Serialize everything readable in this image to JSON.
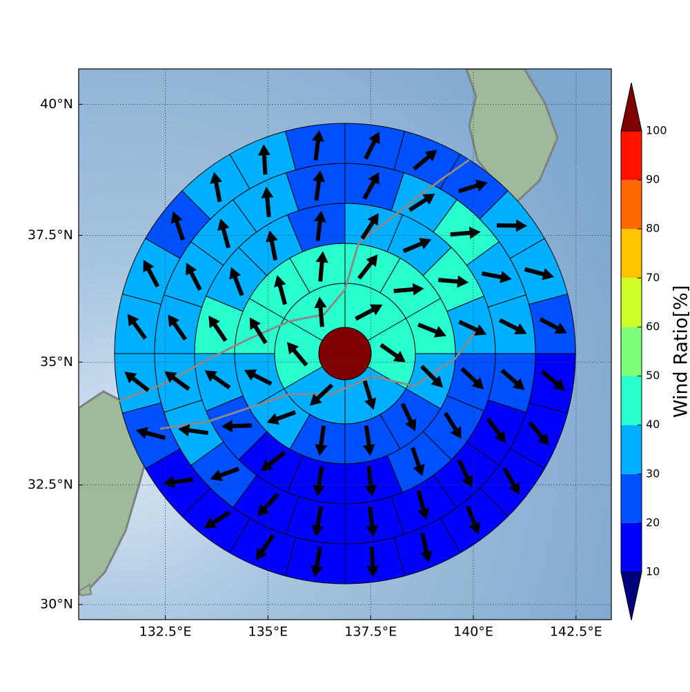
{
  "chart_data": {
    "type": "polar_sector_map",
    "xlim": [
      130.39,
      143.36
    ],
    "ylim": [
      29.68,
      40.66
    ],
    "xticks": [
      {
        "value": 132.5,
        "label": "132.5°E"
      },
      {
        "value": 135,
        "label": "135°E"
      },
      {
        "value": 137.5,
        "label": "137.5°E"
      },
      {
        "value": 140,
        "label": "140°E"
      },
      {
        "value": 142.5,
        "label": "142.5°E"
      }
    ],
    "yticks": [
      {
        "value": 30,
        "label": "30°N"
      },
      {
        "value": 32.5,
        "label": "32.5°N"
      },
      {
        "value": 35,
        "label": "35°N"
      },
      {
        "value": 37.5,
        "label": "37.5°N"
      },
      {
        "value": 40,
        "label": "40°N"
      }
    ],
    "grid": true,
    "colorbar": {
      "label": "Wind Ratio[%]",
      "ticks": [
        10,
        20,
        30,
        40,
        50,
        60,
        70,
        80,
        90,
        100
      ],
      "colors": [
        "#0000ff",
        "#0050ff",
        "#00b0ff",
        "#29ffce",
        "#7dff7a",
        "#ceff29",
        "#ffc400",
        "#ff6800",
        "#ff1300"
      ],
      "under_color": "#00007f",
      "over_color": "#7f0000"
    },
    "center_value": 105,
    "rings": [
      {
        "ratio": [
          45,
          45,
          35,
          35,
          45,
          45
        ],
        "direction": [
          62,
          125,
          163,
          227,
          320,
          355
        ]
      },
      {
        "ratio": [
          45,
          45,
          45,
          35,
          25,
          25,
          25,
          35,
          35,
          45,
          45,
          45
        ],
        "direction": [
          38,
          85,
          112,
          135,
          155,
          172,
          188,
          250,
          297,
          328,
          345,
          5
        ]
      },
      {
        "ratio": [
          35,
          35,
          45,
          35,
          25,
          25,
          25,
          15,
          15,
          15,
          25,
          35,
          45,
          35,
          35,
          25
        ],
        "direction": [
          33,
          67,
          95,
          115,
          133,
          148,
          161,
          174,
          189,
          232,
          268,
          305,
          326,
          339,
          349,
          7
        ]
      },
      {
        "ratio": [
          25,
          35,
          45,
          35,
          35,
          25,
          15,
          15,
          15,
          15,
          15,
          15,
          25,
          35,
          35,
          35,
          35,
          35,
          35,
          25
        ],
        "direction": [
          29,
          57,
          85,
          101,
          117,
          131,
          143,
          155,
          165,
          174,
          190,
          222,
          250,
          278,
          306,
          325,
          333,
          345,
          355,
          8
        ]
      },
      {
        "ratio": [
          25,
          25,
          25,
          35,
          35,
          25,
          15,
          15,
          15,
          15,
          15,
          15,
          15,
          15,
          15,
          15,
          25,
          35,
          35,
          35,
          25,
          35,
          35,
          25
        ],
        "direction": [
          27,
          50,
          73,
          91,
          105,
          118,
          130,
          140,
          150,
          159,
          168,
          177,
          190,
          215,
          238,
          262,
          285,
          308,
          324,
          332,
          341,
          349,
          357,
          7
        ]
      }
    ]
  }
}
